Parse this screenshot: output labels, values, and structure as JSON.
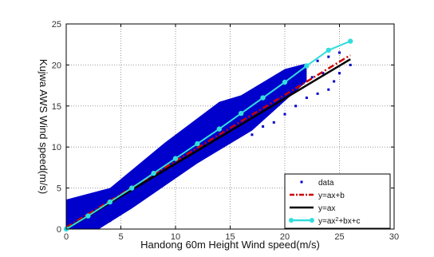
{
  "chart_data": {
    "type": "scatter",
    "xlabel": "Handong 60m Height Wind speed(m/s)",
    "ylabel": "Kujwa AWS Wind speed(m/s)",
    "xlim": [
      0,
      30
    ],
    "ylim": [
      0,
      25
    ],
    "xticks": [
      "0",
      "5",
      "10",
      "15",
      "20",
      "25",
      "30"
    ],
    "yticks": [
      "0",
      "5",
      "10",
      "15",
      "20",
      "25"
    ],
    "grid": true,
    "legend_position": "bottom-right",
    "series": [
      {
        "name": "data",
        "kind": "scatter",
        "color": "#0000cc",
        "points": [
          [
            0.5,
            1.2
          ],
          [
            1,
            2.5
          ],
          [
            1.5,
            0.8
          ],
          [
            2,
            3.0
          ],
          [
            2.5,
            1.8
          ],
          [
            3,
            3.5
          ],
          [
            3.5,
            2.2
          ],
          [
            4,
            4.5
          ],
          [
            4.5,
            3.2
          ],
          [
            5,
            5.5
          ],
          [
            5.5,
            4.0
          ],
          [
            6,
            6.5
          ],
          [
            6.5,
            5.0
          ],
          [
            7,
            7.5
          ],
          [
            7.5,
            6.0
          ],
          [
            8,
            8.5
          ],
          [
            8.5,
            7.0
          ],
          [
            9,
            9.5
          ],
          [
            9.5,
            8.0
          ],
          [
            10,
            10.5
          ],
          [
            10.5,
            9.0
          ],
          [
            11,
            11.5
          ],
          [
            11.5,
            10.0
          ],
          [
            12,
            12.5
          ],
          [
            12.5,
            11.0
          ],
          [
            13,
            13.5
          ],
          [
            13.5,
            12.0
          ],
          [
            14,
            14.5
          ],
          [
            14.5,
            13.0
          ],
          [
            15,
            15.5
          ],
          [
            15.5,
            14.0
          ],
          [
            16,
            15.0
          ],
          [
            16.5,
            14.5
          ],
          [
            17,
            15.8
          ],
          [
            17.5,
            16.2
          ],
          [
            18,
            16.8
          ],
          [
            18.5,
            17.2
          ],
          [
            19,
            17.5
          ],
          [
            20,
            18.5
          ],
          [
            20.5,
            17.0
          ],
          [
            21,
            19.5
          ],
          [
            21.5,
            18.0
          ],
          [
            22,
            20.0
          ],
          [
            22.5,
            18.5
          ],
          [
            23,
            20.5
          ],
          [
            23.5,
            19.0
          ],
          [
            24,
            21.0
          ],
          [
            24.5,
            18.0
          ],
          [
            25,
            21.5
          ],
          [
            26,
            20.0
          ],
          [
            19,
            13.0
          ],
          [
            20,
            14.0
          ],
          [
            21,
            15.0
          ],
          [
            22,
            16.0
          ],
          [
            23,
            16.5
          ],
          [
            17,
            11.5
          ],
          [
            18,
            12.5
          ],
          [
            24,
            17.0
          ],
          [
            25,
            19.0
          ],
          [
            2,
            0.3
          ],
          [
            3,
            0.5
          ],
          [
            4,
            1.0
          ],
          [
            6,
            3.0
          ],
          [
            8,
            5.0
          ],
          [
            10,
            7.0
          ],
          [
            12,
            9.0
          ],
          [
            14,
            11.0
          ],
          [
            16,
            12.5
          ]
        ]
      },
      {
        "name": "y=ax+b",
        "kind": "line",
        "style": "dash-dot",
        "color": "#cc0000",
        "points": [
          [
            0,
            0.2
          ],
          [
            26,
            21.2
          ]
        ]
      },
      {
        "name": "y=ax",
        "kind": "line",
        "style": "solid",
        "color": "#000000",
        "points": [
          [
            0,
            0
          ],
          [
            26,
            20.7
          ]
        ]
      },
      {
        "name": "y=ax2+bx+c",
        "kind": "line-marker",
        "color": "#33dddd",
        "points": [
          [
            0,
            0
          ],
          [
            2,
            1.6
          ],
          [
            4,
            3.3
          ],
          [
            6,
            5.0
          ],
          [
            8,
            6.8
          ],
          [
            10,
            8.6
          ],
          [
            12,
            10.4
          ],
          [
            14,
            12.2
          ],
          [
            16,
            14.1
          ],
          [
            18,
            16.0
          ],
          [
            20,
            17.9
          ],
          [
            22,
            19.9
          ],
          [
            24,
            21.8
          ],
          [
            26,
            22.9
          ]
        ]
      }
    ]
  }
}
